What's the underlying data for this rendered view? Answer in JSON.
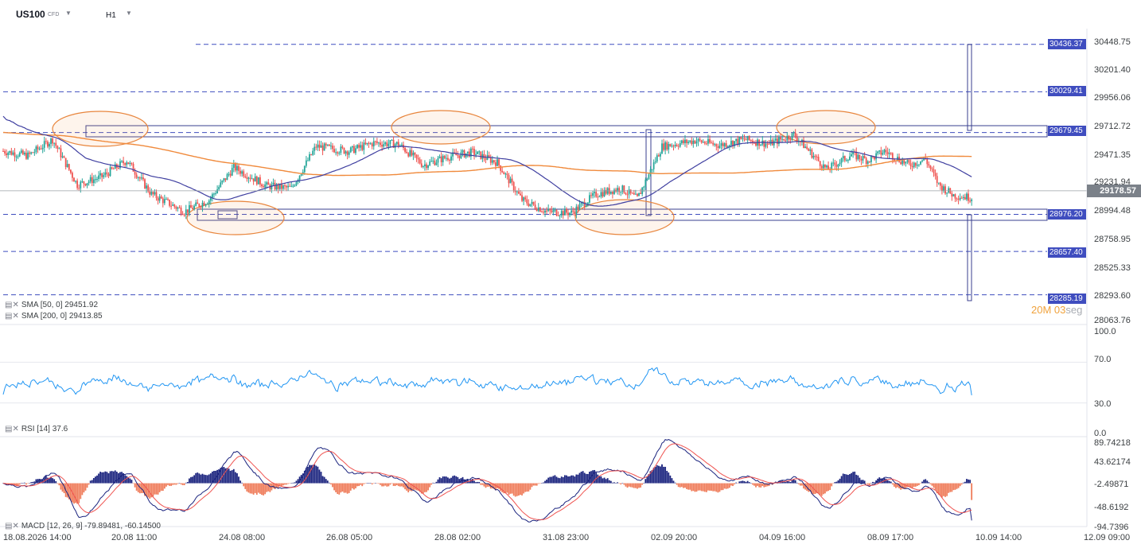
{
  "header": {
    "symbol": "US100",
    "instrument_type": "CFD",
    "timeframe": "H1"
  },
  "price_scale": [
    "30448.75",
    "30201.40",
    "29956.06",
    "29712.72",
    "29471.35",
    "29231.94",
    "28994.48",
    "28758.95",
    "28525.33",
    "28293.60",
    "28063.76"
  ],
  "price_tags": [
    "30436.37",
    "30029.41",
    "29679.45",
    "28976.20",
    "28657.40",
    "28285.19"
  ],
  "current_price": "29178.57",
  "timer": {
    "minutes": "20M",
    "seconds": "03",
    "seg": "seg"
  },
  "indicators": {
    "sma50": "SMA [50, 0] 29451.92",
    "sma200": "SMA [200, 0] 29413.85",
    "rsi": "RSI [14] 37.6",
    "macd": "MACD [12, 26, 9] -79.89481, -60.14500"
  },
  "rsi_scale": [
    "100.0",
    "70.0",
    "30.0",
    "0.0"
  ],
  "macd_scale": [
    "89.74218",
    "43.62174",
    "-2.49871",
    "-48.6192",
    "-94.7396"
  ],
  "time_axis": [
    "18.08.2026 14:00",
    "20.08 11:00",
    "24.08 08:00",
    "26.08 05:00",
    "28.08 02:00",
    "31.08 23:00",
    "02.09 20:00",
    "04.09 16:00",
    "08.09 17:00",
    "10.09 14:00",
    "12.09 09:00"
  ],
  "colors": {
    "up": "#26a69a",
    "down": "#ef5350",
    "sma50": "#3f3fa0",
    "sma200": "#f08a3c",
    "rsi": "#2196f3",
    "macd_pos": "#1a237e",
    "macd_neg": "#ef7c5a",
    "level": "#3f4dbf"
  },
  "chart_data": [
    {
      "type": "candlestick",
      "title": "US100 H1",
      "ylim": [
        28063.76,
        30448.75
      ],
      "levels": [
        30436.37,
        30029.41,
        29679.45,
        28976.2,
        28657.4,
        28285.19
      ],
      "anchors": [
        [
          0,
          29520
        ],
        [
          15,
          29480
        ],
        [
          30,
          29620
        ],
        [
          45,
          29230
        ],
        [
          60,
          29300
        ],
        [
          75,
          29440
        ],
        [
          90,
          29150
        ],
        [
          110,
          29000
        ],
        [
          125,
          29100
        ],
        [
          140,
          29380
        ],
        [
          160,
          29220
        ],
        [
          175,
          29200
        ],
        [
          190,
          29560
        ],
        [
          210,
          29520
        ],
        [
          225,
          29590
        ],
        [
          240,
          29580
        ],
        [
          255,
          29400
        ],
        [
          270,
          29470
        ],
        [
          285,
          29510
        ],
        [
          300,
          29420
        ],
        [
          315,
          29100
        ],
        [
          330,
          29000
        ],
        [
          345,
          28990
        ],
        [
          360,
          29150
        ],
        [
          375,
          29200
        ],
        [
          385,
          29110
        ],
        [
          400,
          29560
        ],
        [
          420,
          29610
        ],
        [
          435,
          29570
        ],
        [
          450,
          29620
        ],
        [
          465,
          29580
        ],
        [
          480,
          29660
        ],
        [
          500,
          29360
        ],
        [
          515,
          29490
        ],
        [
          525,
          29440
        ],
        [
          535,
          29520
        ],
        [
          550,
          29400
        ],
        [
          560,
          29450
        ],
        [
          568,
          29230
        ],
        [
          577,
          29140
        ],
        [
          588,
          29120
        ]
      ],
      "last": 29178.57
    },
    {
      "type": "line",
      "title": "RSI [14]",
      "ylim": [
        0,
        100
      ],
      "last": 37.6
    },
    {
      "type": "bar",
      "title": "MACD [12, 26, 9]",
      "ylim": [
        -94.7396,
        89.74218
      ],
      "macd": -79.89481,
      "signal": -60.145
    }
  ]
}
